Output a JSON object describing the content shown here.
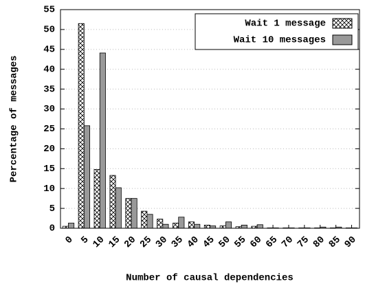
{
  "chart_data": {
    "type": "bar",
    "x_label": "Number of causal dependencies",
    "y_label": "Percentage of messages",
    "categories": [
      "0",
      "5",
      "10",
      "15",
      "20",
      "25",
      "30",
      "35",
      "40",
      "45",
      "50",
      "55",
      "60",
      "65",
      "70",
      "75",
      "80",
      "85",
      "90"
    ],
    "series": [
      {
        "name": "Wait 1 message",
        "color": "#ffffff",
        "pattern": "crosshatch",
        "values": [
          0.5,
          51.5,
          14.8,
          13.3,
          7.5,
          4.3,
          2.3,
          1.3,
          1.6,
          0.8,
          0.6,
          0.4,
          0.5,
          0.1,
          0.1,
          0.1,
          0.1,
          0.1,
          0.1
        ]
      },
      {
        "name": "Wait 10 messages",
        "color": "#999999",
        "values": [
          1.3,
          25.8,
          44.1,
          10.2,
          7.5,
          3.5,
          1.0,
          2.8,
          1.0,
          0.6,
          1.6,
          0.8,
          0.9,
          0.1,
          0.1,
          0.1,
          0.3,
          0.3,
          0.1
        ]
      }
    ],
    "ylim": [
      0,
      55
    ],
    "yticks": [
      0,
      5,
      10,
      15,
      20,
      25,
      30,
      35,
      40,
      45,
      50,
      55
    ],
    "grid": true,
    "legend": "top-right"
  }
}
